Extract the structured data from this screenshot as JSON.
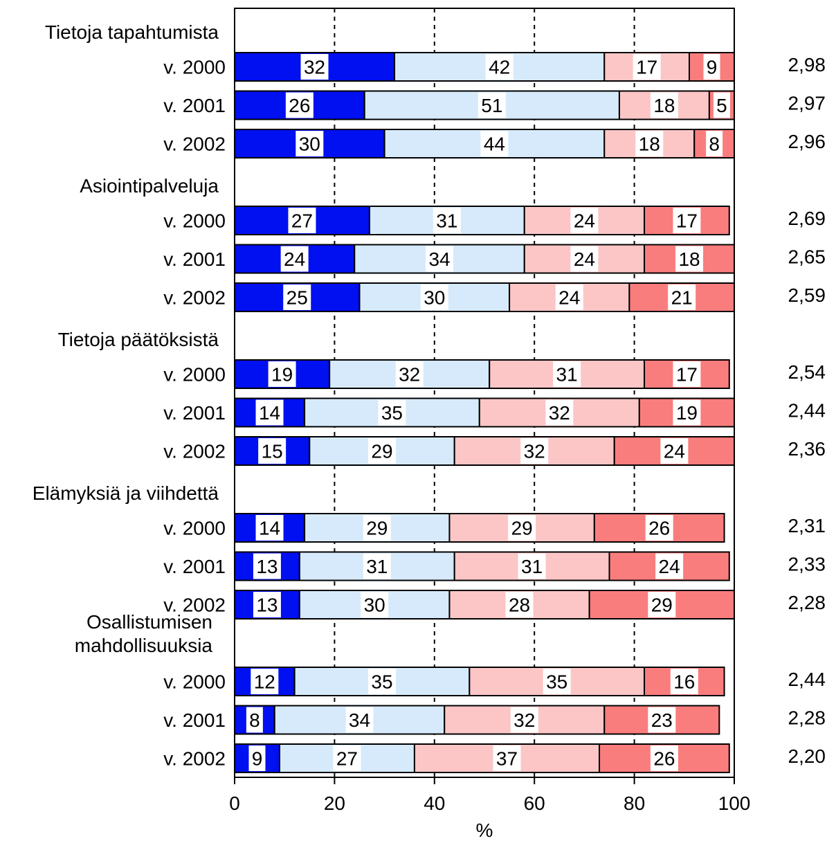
{
  "chart_data": {
    "type": "bar",
    "orientation": "horizontal",
    "stacked": true,
    "xlabel": "%",
    "xlim": [
      0,
      100
    ],
    "xticks": [
      "0",
      "20",
      "40",
      "60",
      "80",
      "100"
    ],
    "grid": "vertical dashed",
    "colors": [
      "#0010F0",
      "#D6EAFB",
      "#FCC6C6",
      "#FA7D7D"
    ],
    "groups": [
      {
        "label": "Tietoja tapahtumista",
        "rows": [
          {
            "label": "v. 2000",
            "values": [
              32,
              42,
              17,
              9
            ],
            "score": "2,98"
          },
          {
            "label": "v. 2001",
            "values": [
              26,
              51,
              18,
              5
            ],
            "score": "2,97"
          },
          {
            "label": "v. 2002",
            "values": [
              30,
              44,
              18,
              8
            ],
            "score": "2,96"
          }
        ]
      },
      {
        "label": "Asiointipalveluja",
        "rows": [
          {
            "label": "v. 2000",
            "values": [
              27,
              31,
              24,
              17
            ],
            "score": "2,69"
          },
          {
            "label": "v. 2001",
            "values": [
              24,
              34,
              24,
              18
            ],
            "score": "2,65"
          },
          {
            "label": "v. 2002",
            "values": [
              25,
              30,
              24,
              21
            ],
            "score": "2,59"
          }
        ]
      },
      {
        "label": "Tietoja päätöksistä",
        "rows": [
          {
            "label": "v. 2000",
            "values": [
              19,
              32,
              31,
              17
            ],
            "score": "2,54"
          },
          {
            "label": "v. 2001",
            "values": [
              14,
              35,
              32,
              19
            ],
            "score": "2,44"
          },
          {
            "label": "v. 2002",
            "values": [
              15,
              29,
              32,
              24
            ],
            "score": "2,36"
          }
        ]
      },
      {
        "label": "Elämyksiä ja viihdettä",
        "rows": [
          {
            "label": "v. 2000",
            "values": [
              14,
              29,
              29,
              26
            ],
            "score": "2,31"
          },
          {
            "label": "v. 2001",
            "values": [
              13,
              31,
              31,
              24
            ],
            "score": "2,33"
          },
          {
            "label": "v. 2002",
            "values": [
              13,
              30,
              28,
              29
            ],
            "score": "2,28"
          }
        ]
      },
      {
        "label": "Osallistumisen mahdollisuuksia",
        "label_lines": [
          "Osallistumisen",
          "mahdollisuuksia"
        ],
        "rows": [
          {
            "label": "v. 2000",
            "values": [
              12,
              35,
              35,
              16
            ],
            "score": "2,44"
          },
          {
            "label": "v. 2001",
            "values": [
              8,
              34,
              32,
              23
            ],
            "score": "2,28"
          },
          {
            "label": "v. 2002",
            "values": [
              9,
              27,
              37,
              26
            ],
            "score": "2,20"
          }
        ]
      }
    ]
  }
}
